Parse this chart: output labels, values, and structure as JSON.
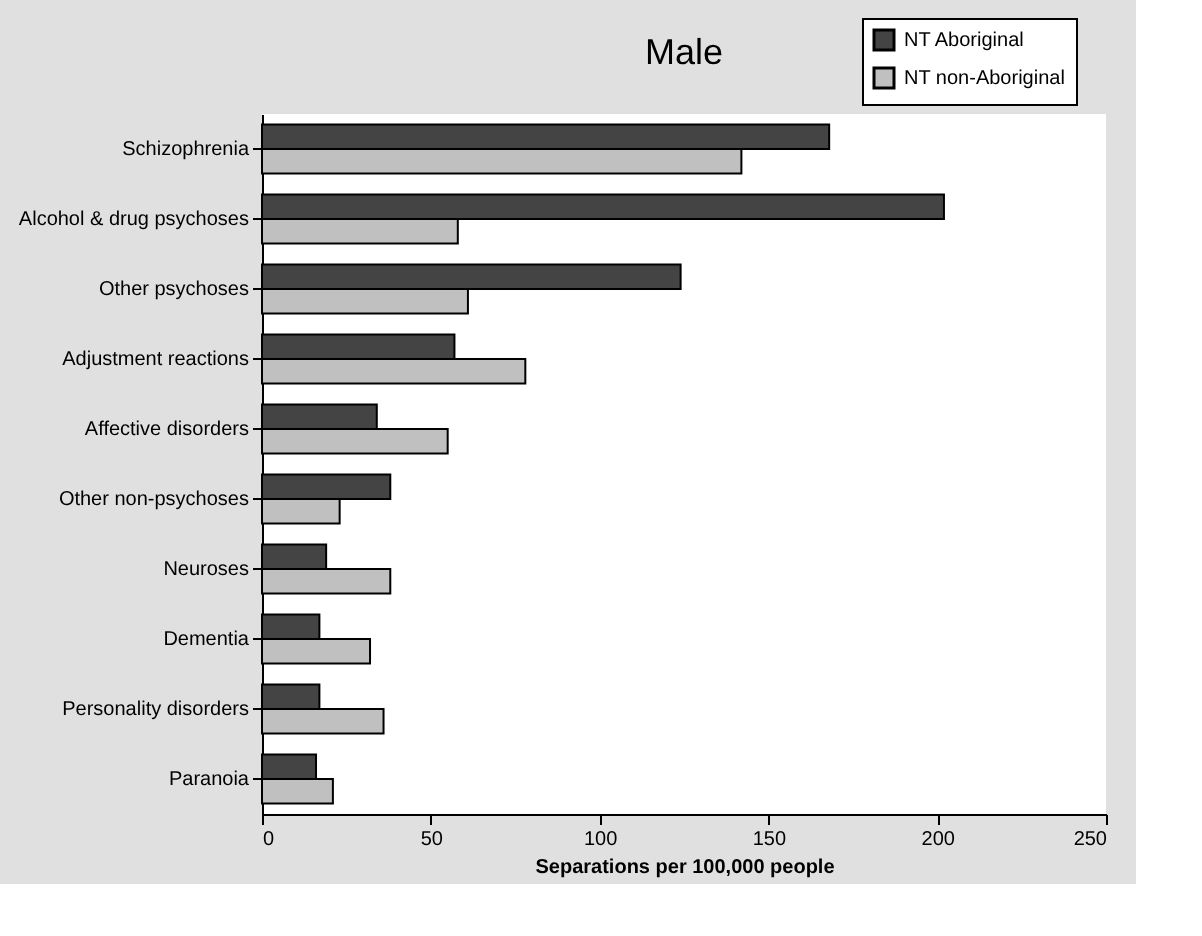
{
  "chart_data": {
    "type": "bar",
    "orientation": "horizontal",
    "title": "Male",
    "xlabel": "Separations per 100,000 people",
    "categories": [
      "Schizophrenia",
      "Alcohol & drug psychoses",
      "Other psychoses",
      "Adjustment reactions",
      "Affective disorders",
      "Other non-psychoses",
      "Neuroses",
      "Dementia",
      "Personality disorders",
      "Paranoia"
    ],
    "series": [
      {
        "name": "NT Aboriginal",
        "color": "#444444",
        "values": [
          168,
          202,
          124,
          57,
          34,
          38,
          19,
          17,
          17,
          16
        ]
      },
      {
        "name": "NT non-Aboriginal",
        "color": "#c0c0c0",
        "values": [
          142,
          58,
          61,
          78,
          55,
          23,
          38,
          32,
          36,
          21
        ]
      }
    ],
    "xlim": [
      0,
      250
    ],
    "xticks": [
      0,
      50,
      100,
      150,
      200,
      250
    ],
    "grid": false,
    "legend": "top right"
  }
}
